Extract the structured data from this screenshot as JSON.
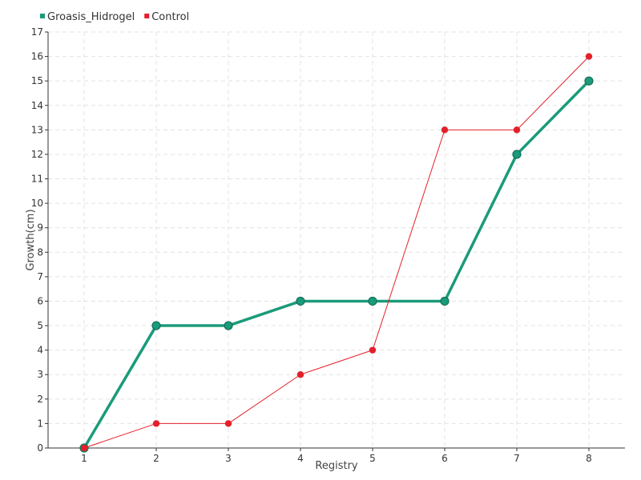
{
  "chart_data": {
    "type": "line",
    "title": "",
    "xlabel": "Registry",
    "ylabel": "Growth(cm)",
    "categories": [
      "1",
      "2",
      "3",
      "4",
      "5",
      "6",
      "7",
      "8"
    ],
    "ylim": [
      0,
      17
    ],
    "yticks": [
      0,
      1,
      2,
      3,
      4,
      5,
      6,
      7,
      8,
      9,
      10,
      11,
      12,
      13,
      14,
      15,
      16,
      17
    ],
    "grid": true,
    "legend_position": "top-left",
    "series": [
      {
        "name": "Groasis_Hidrogel",
        "color": "#1a9b7a",
        "values": [
          0,
          5,
          5,
          6,
          6,
          6,
          12,
          15
        ]
      },
      {
        "name": "Control",
        "color": "#e3202a",
        "values": [
          0,
          1,
          1,
          3,
          4,
          13,
          13,
          16
        ]
      }
    ]
  }
}
